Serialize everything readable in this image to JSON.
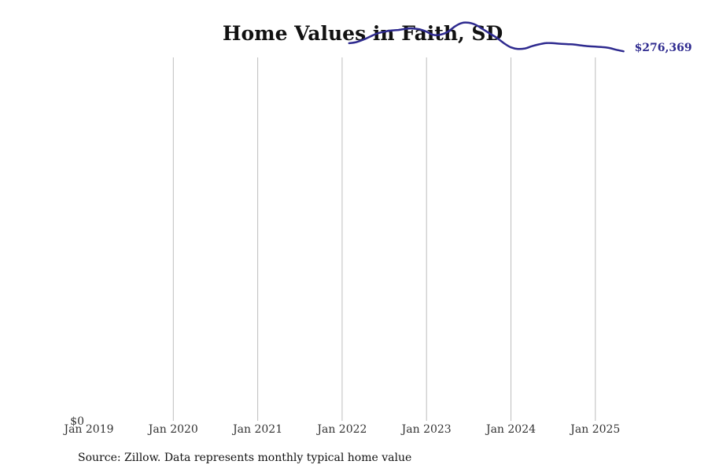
{
  "chart_data": {
    "type": "line",
    "title": "Home Values in Faith, SD",
    "source": "Source: Zillow. Data represents monthly typical home value",
    "xlabel": "",
    "ylabel": "",
    "x_ticks": [
      "Jan 2019",
      "Jan 2020",
      "Jan 2021",
      "Jan 2022",
      "Jan 2023",
      "Jan 2024",
      "Jan 2025"
    ],
    "y_ticks": [
      "$0"
    ],
    "xlim": [
      "2019-01",
      "2025-06"
    ],
    "ylim": [
      0,
      300000
    ],
    "grid": "vertical",
    "legend": "none",
    "line_color": "#2e2a8f",
    "end_label": "$276,369",
    "series": [
      {
        "x": [
          "2022-02",
          "2022-03",
          "2022-04",
          "2022-05",
          "2022-06",
          "2022-07",
          "2022-08",
          "2022-09",
          "2022-10",
          "2022-11",
          "2022-12",
          "2023-01",
          "2023-02",
          "2023-03",
          "2023-04",
          "2023-05",
          "2023-06",
          "2023-07",
          "2023-08",
          "2023-09",
          "2023-10",
          "2023-11",
          "2023-12",
          "2024-01",
          "2024-02",
          "2024-03",
          "2024-04",
          "2024-05",
          "2024-06",
          "2024-07",
          "2024-08",
          "2024-09",
          "2024-10",
          "2024-11",
          "2024-12",
          "2025-01",
          "2025-02",
          "2025-03",
          "2025-04",
          "2025-05"
        ],
        "y": [
          282400,
          283200,
          285000,
          287400,
          289700,
          291000,
          291900,
          292300,
          293100,
          293400,
          292800,
          291000,
          288600,
          288800,
          290800,
          294800,
          297500,
          297700,
          296100,
          292900,
          289600,
          286400,
          282400,
          279300,
          278100,
          278500,
          280200,
          281500,
          282500,
          282400,
          282000,
          281700,
          281400,
          280700,
          280100,
          279800,
          279500,
          278800,
          277500,
          276369
        ]
      }
    ]
  }
}
